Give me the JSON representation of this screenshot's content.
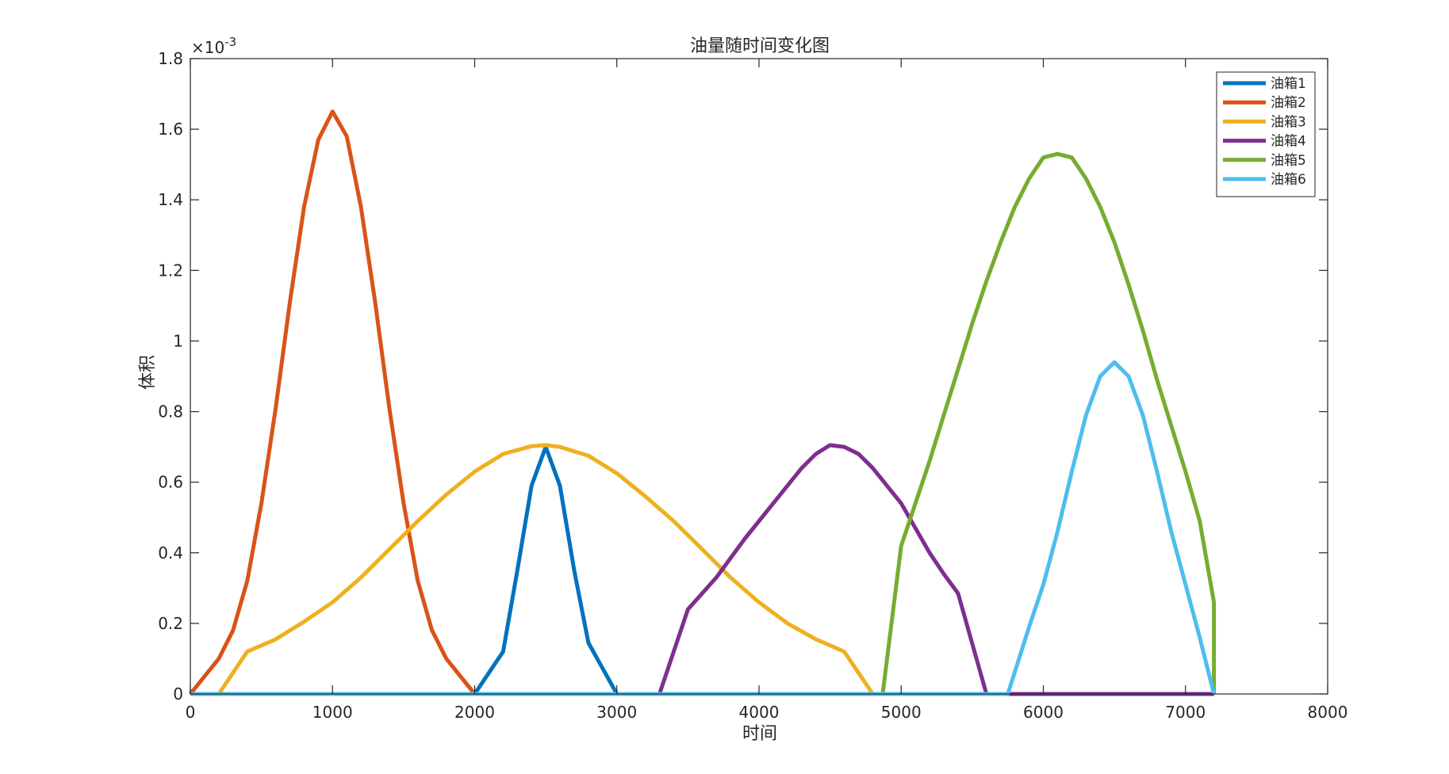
{
  "chart_data": {
    "type": "line",
    "title": "油量随时间变化图",
    "xlabel": "时间",
    "ylabel": "体积",
    "exponent_label": "×10",
    "exponent_power": "-3",
    "xlim": [
      0,
      8000
    ],
    "ylim": [
      0,
      0.0018
    ],
    "xticks": [
      0,
      1000,
      2000,
      3000,
      4000,
      5000,
      6000,
      7000,
      8000
    ],
    "yticks": [
      0,
      0.0002,
      0.0004,
      0.0006,
      0.0008,
      0.001,
      0.0012,
      0.0014,
      0.0016,
      0.0018
    ],
    "xtick_labels": [
      "0",
      "1000",
      "2000",
      "3000",
      "4000",
      "5000",
      "6000",
      "7000",
      "8000"
    ],
    "ytick_labels": [
      "0",
      "0.2",
      "0.4",
      "0.6",
      "0.8",
      "1",
      "1.2",
      "1.4",
      "1.6",
      "1.8"
    ],
    "grid": false,
    "legend_position": "top-right",
    "series": [
      {
        "name": "油箱1",
        "color": "#0072BD",
        "x": [
          0,
          2000,
          2200,
          2300,
          2400,
          2500,
          2600,
          2700,
          2800,
          3000,
          7200
        ],
        "y": [
          0,
          0,
          0.00012,
          0.00035,
          0.00059,
          0.0007,
          0.00059,
          0.00035,
          0.000145,
          0,
          0
        ]
      },
      {
        "name": "油箱2",
        "color": "#D95319",
        "x": [
          0,
          100,
          200,
          300,
          400,
          500,
          600,
          700,
          800,
          900,
          1000,
          1100,
          1200,
          1300,
          1400,
          1500,
          1600,
          1700,
          1800,
          2000,
          7200
        ],
        "y": [
          0,
          5e-05,
          0.0001,
          0.00018,
          0.00032,
          0.00054,
          0.00081,
          0.00111,
          0.00138,
          0.00157,
          0.00165,
          0.00158,
          0.00138,
          0.00111,
          0.00081,
          0.00054,
          0.00032,
          0.00018,
          0.0001,
          0,
          0
        ]
      },
      {
        "name": "油箱3",
        "color": "#EDB120",
        "x": [
          0,
          200,
          400,
          600,
          800,
          1000,
          1200,
          1400,
          1600,
          1800,
          2000,
          2200,
          2400,
          2500,
          2600,
          2800,
          3000,
          3200,
          3400,
          3600,
          3800,
          4000,
          4200,
          4400,
          4600,
          4800,
          7200
        ],
        "y": [
          0,
          0,
          0.00012,
          0.000155,
          0.000205,
          0.00026,
          0.00033,
          0.00041,
          0.00049,
          0.000565,
          0.00063,
          0.00068,
          0.000702,
          0.000705,
          0.0007,
          0.000675,
          0.000625,
          0.00056,
          0.00049,
          0.00041,
          0.00033,
          0.00026,
          0.0002,
          0.000155,
          0.00012,
          0,
          0
        ]
      },
      {
        "name": "油箱4",
        "color": "#7E2F8E",
        "x": [
          0,
          3300,
          3500,
          3700,
          3900,
          4100,
          4200,
          4300,
          4400,
          4500,
          4600,
          4700,
          4800,
          4900,
          5000,
          5100,
          5200,
          5300,
          5400,
          5600,
          7200
        ],
        "y": [
          0,
          0,
          0.00024,
          0.00033,
          0.00044,
          0.00054,
          0.00059,
          0.00064,
          0.00068,
          0.000705,
          0.0007,
          0.00068,
          0.00064,
          0.00059,
          0.00054,
          0.00047,
          0.0004,
          0.00034,
          0.000285,
          0,
          0
        ]
      },
      {
        "name": "油箱5",
        "color": "#77AC30",
        "x": [
          0,
          4870,
          5000,
          5100,
          5200,
          5300,
          5400,
          5500,
          5600,
          5700,
          5800,
          5900,
          6000,
          6100,
          6200,
          6300,
          6400,
          6500,
          6600,
          6700,
          6800,
          6900,
          7000,
          7100,
          7200,
          7200
        ],
        "y": [
          0,
          0,
          0.00042,
          0.00054,
          0.00066,
          0.00079,
          0.00092,
          0.00105,
          0.00117,
          0.00128,
          0.00138,
          0.00146,
          0.00152,
          0.00153,
          0.00152,
          0.00146,
          0.00138,
          0.00128,
          0.00116,
          0.00103,
          0.00089,
          0.00076,
          0.00063,
          0.00049,
          0.00026,
          0
        ]
      },
      {
        "name": "油箱6",
        "color": "#4DBEEE",
        "x": [
          0,
          5750,
          5900,
          6000,
          6100,
          6200,
          6300,
          6400,
          6500,
          6600,
          6700,
          6800,
          6900,
          7000,
          7100,
          7200
        ],
        "y": [
          0,
          0,
          0.00019,
          0.00031,
          0.00046,
          0.00063,
          0.00079,
          0.0009,
          0.00094,
          0.0009,
          0.00079,
          0.00063,
          0.00046,
          0.00031,
          0.00016,
          0
        ]
      }
    ]
  }
}
